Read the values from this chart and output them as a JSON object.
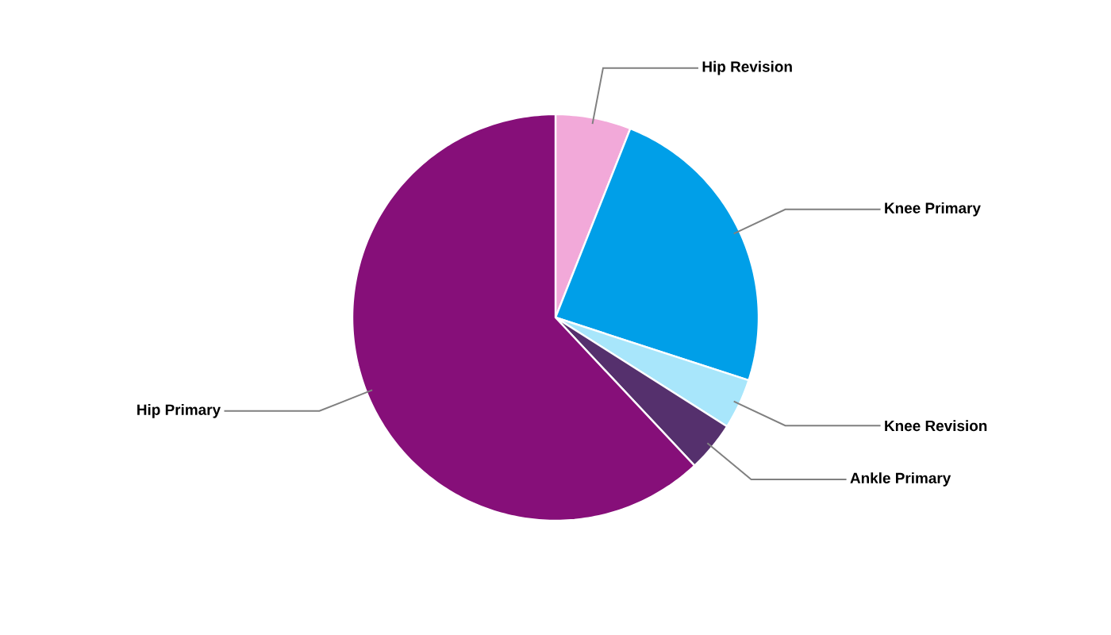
{
  "chart_data": {
    "type": "pie",
    "categories": [
      "Hip Revision",
      "Knee Primary",
      "Knee Revision",
      "Ankle Primary",
      "Hip Primary"
    ],
    "values": [
      6,
      24,
      4,
      4,
      62
    ],
    "colors": [
      "#f2a9d9",
      "#009fe8",
      "#a8e6fb",
      "#55306d",
      "#860f79"
    ]
  }
}
